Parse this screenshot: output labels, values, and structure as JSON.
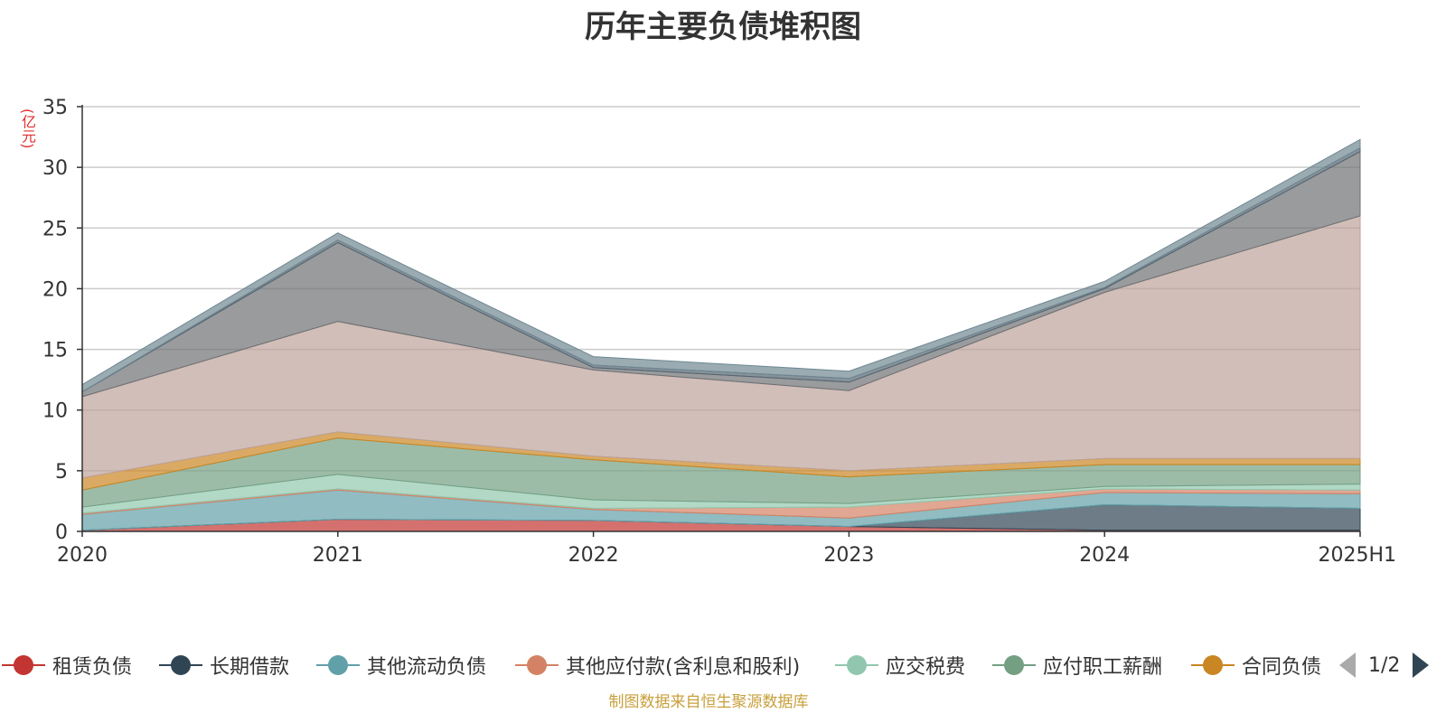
{
  "chart_data": {
    "type": "area",
    "stacked": true,
    "title": "历年主要负债堆积图",
    "ylabel": "(亿元)",
    "xlabel": "",
    "categories": [
      "2020",
      "2021",
      "2022",
      "2023",
      "2024",
      "2025H1"
    ],
    "ylim": [
      0,
      35
    ],
    "yticks": [
      0,
      5,
      10,
      15,
      20,
      25,
      30,
      35
    ],
    "grid": true,
    "legend_position": "bottom",
    "series": [
      {
        "name": "租赁负债",
        "color": "#c23531",
        "values": [
          0.1,
          1.0,
          0.9,
          0.4,
          0.1,
          0.1
        ]
      },
      {
        "name": "长期借款",
        "color": "#2f4554",
        "values": [
          0.0,
          0.0,
          0.0,
          0.0,
          2.1,
          1.8
        ]
      },
      {
        "name": "其他流动负债",
        "color": "#61a0a8",
        "values": [
          1.3,
          2.4,
          0.9,
          0.7,
          1.0,
          1.2
        ]
      },
      {
        "name": "其他应付款(含利息和股利)",
        "color": "#d48265",
        "values": [
          0.1,
          0.1,
          0.1,
          0.9,
          0.3,
          0.3
        ]
      },
      {
        "name": "应交税费",
        "color": "#91c7ae",
        "values": [
          0.5,
          1.2,
          0.7,
          0.3,
          0.2,
          0.5
        ]
      },
      {
        "name": "应付职工薪酬",
        "color": "#749f83",
        "values": [
          1.4,
          3.0,
          3.3,
          2.2,
          1.8,
          1.6
        ]
      },
      {
        "name": "合同负债",
        "color": "#ca8622",
        "values": [
          1.0,
          0.5,
          0.3,
          0.5,
          0.5,
          0.5
        ]
      },
      {
        "name": "",
        "color": "#bda29a",
        "values": [
          6.7,
          9.1,
          7.1,
          6.6,
          13.7,
          20.0
        ]
      },
      {
        "name": "",
        "color": "#6e7074",
        "values": [
          0.4,
          6.5,
          0.2,
          0.7,
          0.3,
          5.3
        ]
      },
      {
        "name": "",
        "color": "#546570",
        "values": [
          0.0,
          0.2,
          0.2,
          0.3,
          0.1,
          0.3
        ]
      },
      {
        "name": "",
        "color": "#6f8792",
        "values": [
          0.6,
          0.6,
          0.7,
          0.6,
          0.5,
          0.7
        ]
      }
    ]
  },
  "legend": {
    "items": [
      "租赁负债",
      "长期借款",
      "其他流动负债",
      "其他应付款(含利息和股利)",
      "应交税费",
      "应付职工薪酬",
      "合同负债"
    ],
    "page_text": "1/2"
  },
  "source_text": "制图数据来自恒生聚源数据库"
}
